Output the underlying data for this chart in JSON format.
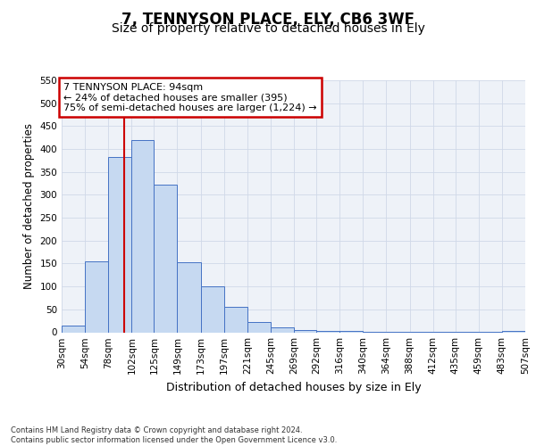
{
  "title": "7, TENNYSON PLACE, ELY, CB6 3WF",
  "subtitle": "Size of property relative to detached houses in Ely",
  "xlabel": "Distribution of detached houses by size in Ely",
  "ylabel": "Number of detached properties",
  "bin_edges": [
    30,
    54,
    78,
    102,
    125,
    149,
    173,
    197,
    221,
    245,
    269,
    292,
    316,
    340,
    364,
    388,
    412,
    435,
    459,
    483,
    507
  ],
  "bar_heights": [
    15,
    155,
    383,
    420,
    322,
    153,
    100,
    55,
    22,
    10,
    5,
    2,
    2,
    1,
    1,
    1,
    1,
    1,
    1,
    3
  ],
  "bar_color": "#c6d9f1",
  "bar_edge_color": "#4472c4",
  "grid_color": "#d0d8e8",
  "background_color": "#eef2f8",
  "vline_x": 94,
  "vline_color": "#cc0000",
  "annotation_text": "7 TENNYSON PLACE: 94sqm\n← 24% of detached houses are smaller (395)\n75% of semi-detached houses are larger (1,224) →",
  "annotation_box_color": "#cc0000",
  "ylim": [
    0,
    550
  ],
  "tick_labels": [
    "30sqm",
    "54sqm",
    "78sqm",
    "102sqm",
    "125sqm",
    "149sqm",
    "173sqm",
    "197sqm",
    "221sqm",
    "245sqm",
    "269sqm",
    "292sqm",
    "316sqm",
    "340sqm",
    "364sqm",
    "388sqm",
    "412sqm",
    "435sqm",
    "459sqm",
    "483sqm",
    "507sqm"
  ],
  "footer_text": "Contains HM Land Registry data © Crown copyright and database right 2024.\nContains public sector information licensed under the Open Government Licence v3.0.",
  "title_fontsize": 12,
  "subtitle_fontsize": 10,
  "xlabel_fontsize": 9,
  "ylabel_fontsize": 8.5,
  "tick_fontsize": 7.5,
  "annotation_fontsize": 8,
  "footer_fontsize": 6
}
